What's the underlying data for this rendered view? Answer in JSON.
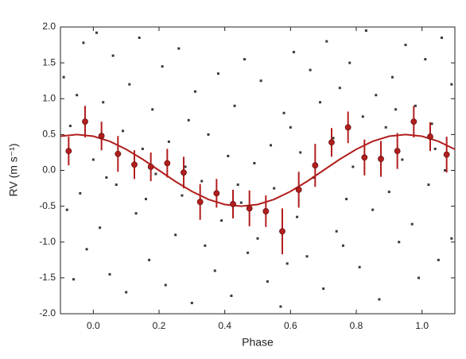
{
  "chart_data": {
    "type": "scatter",
    "xlabel": "Phase",
    "ylabel": "RV (m s⁻¹)",
    "xlim": [
      -0.1,
      1.1
    ],
    "xticks": [
      {
        "value": 0,
        "label": "0.0"
      },
      {
        "value": 0.2,
        "label": "0.2"
      },
      {
        "value": 0.4,
        "label": "0.4"
      },
      {
        "value": 0.6,
        "label": "0.6"
      },
      {
        "value": 0.8,
        "label": "0.8"
      },
      {
        "value": 1,
        "label": "1.0"
      }
    ],
    "ylim": [
      -2,
      2
    ],
    "yticks": [
      {
        "value": -2,
        "label": "-2.0"
      },
      {
        "value": -1.5,
        "label": "-1.5"
      },
      {
        "value": -1,
        "label": "-1.0"
      },
      {
        "value": -0.5,
        "label": "-0.5"
      },
      {
        "value": 0,
        "label": "0.0"
      },
      {
        "value": 0.5,
        "label": "0.5"
      },
      {
        "value": 1,
        "label": "1.0"
      },
      {
        "value": 1.5,
        "label": "1.5"
      },
      {
        "value": 2,
        "label": "2.0"
      }
    ],
    "series": [
      {
        "type": "scatter",
        "color": "#3a3a3a",
        "x": [
          -0.09,
          -0.08,
          -0.07,
          -0.06,
          -0.05,
          -0.04,
          -0.03,
          -0.02,
          0.0,
          0.01,
          0.02,
          0.03,
          0.05,
          0.06,
          0.07,
          0.09,
          0.1,
          0.11,
          0.13,
          0.14,
          0.15,
          0.17,
          0.18,
          0.19,
          0.21,
          0.22,
          0.23,
          0.25,
          0.26,
          0.27,
          0.29,
          0.3,
          0.31,
          0.33,
          0.34,
          0.35,
          0.37,
          0.38,
          0.39,
          0.41,
          0.42,
          0.43,
          0.45,
          0.46,
          0.47,
          0.49,
          0.5,
          0.51,
          0.53,
          0.54,
          0.55,
          0.57,
          0.58,
          0.59,
          0.61,
          0.62,
          0.63,
          0.65,
          0.66,
          0.67,
          0.69,
          0.7,
          0.71,
          0.73,
          0.74,
          0.75,
          0.77,
          0.78,
          0.79,
          0.81,
          0.82,
          0.83,
          0.85,
          0.86,
          0.87,
          0.89,
          0.9,
          0.91,
          0.93,
          0.94,
          0.95,
          0.97,
          0.98,
          0.99,
          1.01,
          1.02,
          1.03,
          1.05,
          1.06,
          1.07,
          1.09,
          1.09,
          0.04,
          0.16,
          0.28,
          0.44,
          0.6,
          0.76,
          0.92,
          1.04
        ],
        "values": [
          1.3,
          -0.55,
          0.62,
          -1.52,
          1.05,
          -0.32,
          1.78,
          -1.1,
          0.15,
          1.92,
          -0.8,
          0.95,
          -1.45,
          1.6,
          -0.2,
          0.55,
          -1.7,
          1.2,
          -0.6,
          1.85,
          0.3,
          -1.25,
          0.85,
          -0.05,
          1.45,
          -1.6,
          0.4,
          -0.9,
          1.7,
          -0.35,
          0.7,
          -1.85,
          1.1,
          -0.15,
          -1.05,
          0.5,
          -1.4,
          1.35,
          -0.7,
          0.2,
          -1.75,
          0.9,
          -0.45,
          1.55,
          -1.15,
          0.1,
          -0.95,
          1.25,
          -1.55,
          0.35,
          -0.25,
          -1.9,
          0.8,
          -1.3,
          1.65,
          -0.65,
          0.25,
          -1.2,
          1.4,
          -0.1,
          0.95,
          -1.65,
          1.8,
          0.45,
          -0.85,
          1.15,
          -0.4,
          1.5,
          0.05,
          -1.35,
          0.75,
          1.95,
          -0.55,
          1.05,
          -1.8,
          0.6,
          -0.3,
          1.3,
          -1.0,
          0.15,
          1.75,
          -0.75,
          0.9,
          -1.5,
          1.55,
          -0.2,
          0.65,
          -1.25,
          1.85,
          0.0,
          -0.95,
          1.2,
          -0.1,
          -0.4,
          0.05,
          -0.2,
          0.6,
          -1.05,
          0.85,
          0.3
        ]
      },
      {
        "type": "line",
        "color": "#b21e1e",
        "x": [
          -0.1,
          -0.05,
          0,
          0.05,
          0.1,
          0.15,
          0.2,
          0.25,
          0.3,
          0.35,
          0.4,
          0.45,
          0.5,
          0.55,
          0.6,
          0.65,
          0.7,
          0.75,
          0.8,
          0.85,
          0.9,
          0.95,
          1.0,
          1.05,
          1.1
        ],
        "values": [
          0.476,
          0.5,
          0.476,
          0.405,
          0.294,
          0.155,
          0,
          -0.155,
          -0.294,
          -0.405,
          -0.476,
          -0.5,
          -0.476,
          -0.405,
          -0.294,
          -0.155,
          0,
          0.155,
          0.294,
          0.405,
          0.476,
          0.5,
          0.476,
          0.405,
          0.294
        ]
      },
      {
        "type": "errorbar",
        "color": "#b21e1e",
        "x": [
          -0.075,
          -0.025,
          0.025,
          0.075,
          0.125,
          0.175,
          0.225,
          0.275,
          0.325,
          0.375,
          0.425,
          0.475,
          0.525,
          0.575,
          0.625,
          0.675,
          0.725,
          0.775,
          0.825,
          0.875,
          0.925,
          0.975,
          1.025,
          1.075
        ],
        "values": [
          0.27,
          0.68,
          0.48,
          0.23,
          0.08,
          0.05,
          0.1,
          -0.03,
          -0.44,
          -0.32,
          -0.47,
          -0.53,
          -0.57,
          -0.85,
          -0.27,
          0.07,
          0.39,
          0.6,
          0.18,
          0.16,
          0.27,
          0.68,
          0.47,
          0.22
        ],
        "errors": [
          0.2,
          0.22,
          0.2,
          0.25,
          0.2,
          0.2,
          0.2,
          0.22,
          0.25,
          0.2,
          0.2,
          0.25,
          0.22,
          0.32,
          0.25,
          0.3,
          0.2,
          0.22,
          0.25,
          0.25,
          0.25,
          0.22,
          0.2,
          0.25
        ]
      }
    ]
  }
}
